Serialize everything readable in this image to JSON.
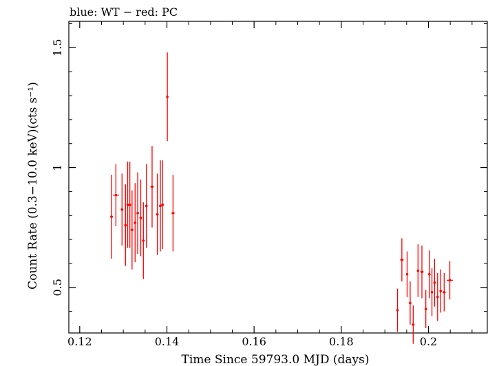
{
  "chart_data": {
    "type": "scatter",
    "title": "blue: WT − red: PC",
    "xlabel": "Time Since 59793.0 MJD (days)",
    "ylabel": "Count Rate (0.3−10.0 keV)(cts s⁻¹)",
    "xlim": [
      0.1175,
      0.2135
    ],
    "ylim": [
      0.31,
      1.61
    ],
    "xticks": [
      0.12,
      0.14,
      0.16,
      0.18,
      0.2
    ],
    "xtick_labels": [
      "0.12",
      "0.14",
      "0.16",
      "0.18",
      "0.2"
    ],
    "yticks": [
      0.5,
      1.0,
      1.5
    ],
    "ytick_labels": [
      "0.5",
      "1",
      "1.5"
    ],
    "grid": false,
    "series": [
      {
        "color": "#ff0000",
        "points": [
          {
            "x": 0.1273,
            "y": 0.795,
            "yerr": 0.175,
            "xerr": 0.0003
          },
          {
            "x": 0.1283,
            "y": 0.885,
            "yerr": 0.13,
            "xerr": 0.0007
          },
          {
            "x": 0.1297,
            "y": 0.825,
            "yerr": 0.15,
            "xerr": 0.0003
          },
          {
            "x": 0.1305,
            "y": 0.76,
            "yerr": 0.17,
            "xerr": 0.0003
          },
          {
            "x": 0.131,
            "y": 0.845,
            "yerr": 0.18,
            "xerr": 0.0003
          },
          {
            "x": 0.1315,
            "y": 0.845,
            "yerr": 0.18,
            "xerr": 0.0003
          },
          {
            "x": 0.132,
            "y": 0.74,
            "yerr": 0.165,
            "xerr": 0.0003
          },
          {
            "x": 0.1327,
            "y": 0.77,
            "yerr": 0.165,
            "xerr": 0.0003
          },
          {
            "x": 0.1333,
            "y": 0.81,
            "yerr": 0.17,
            "xerr": 0.0003
          },
          {
            "x": 0.134,
            "y": 0.79,
            "yerr": 0.16,
            "xerr": 0.0003
          },
          {
            "x": 0.1346,
            "y": 0.695,
            "yerr": 0.16,
            "xerr": 0.0003
          },
          {
            "x": 0.1353,
            "y": 0.84,
            "yerr": 0.175,
            "xerr": 0.0003
          },
          {
            "x": 0.1366,
            "y": 0.92,
            "yerr": 0.17,
            "xerr": 0.0004
          },
          {
            "x": 0.1378,
            "y": 0.805,
            "yerr": 0.17,
            "xerr": 0.0003
          },
          {
            "x": 0.1385,
            "y": 0.84,
            "yerr": 0.19,
            "xerr": 0.0003
          },
          {
            "x": 0.139,
            "y": 0.845,
            "yerr": 0.185,
            "xerr": 0.0003
          },
          {
            "x": 0.1401,
            "y": 1.295,
            "yerr": 0.185,
            "xerr": 0.0002
          },
          {
            "x": 0.1414,
            "y": 0.81,
            "yerr": 0.16,
            "xerr": 0.0004
          },
          {
            "x": 0.1929,
            "y": 0.405,
            "yerr": 0.09,
            "xerr": 0.0002
          },
          {
            "x": 0.1939,
            "y": 0.615,
            "yerr": 0.09,
            "xerr": 0.0004
          },
          {
            "x": 0.1951,
            "y": 0.555,
            "yerr": 0.095,
            "xerr": 0.0002
          },
          {
            "x": 0.1958,
            "y": 0.435,
            "yerr": 0.09,
            "xerr": 0.0002
          },
          {
            "x": 0.1965,
            "y": 0.345,
            "yerr": 0.08,
            "xerr": 0.0003
          },
          {
            "x": 0.1976,
            "y": 0.57,
            "yerr": 0.11,
            "xerr": 0.0002
          },
          {
            "x": 0.1985,
            "y": 0.565,
            "yerr": 0.11,
            "xerr": 0.0004
          },
          {
            "x": 0.1994,
            "y": 0.41,
            "yerr": 0.08,
            "xerr": 0.0002
          },
          {
            "x": 0.2002,
            "y": 0.555,
            "yerr": 0.1,
            "xerr": 0.0003
          },
          {
            "x": 0.2008,
            "y": 0.48,
            "yerr": 0.1,
            "xerr": 0.0002
          },
          {
            "x": 0.2014,
            "y": 0.52,
            "yerr": 0.1,
            "xerr": 0.0002
          },
          {
            "x": 0.2021,
            "y": 0.46,
            "yerr": 0.1,
            "xerr": 0.0002
          },
          {
            "x": 0.2028,
            "y": 0.485,
            "yerr": 0.09,
            "xerr": 0.0002
          },
          {
            "x": 0.2036,
            "y": 0.48,
            "yerr": 0.08,
            "xerr": 0.0004
          },
          {
            "x": 0.2049,
            "y": 0.53,
            "yerr": 0.08,
            "xerr": 0.0007
          }
        ]
      }
    ]
  }
}
